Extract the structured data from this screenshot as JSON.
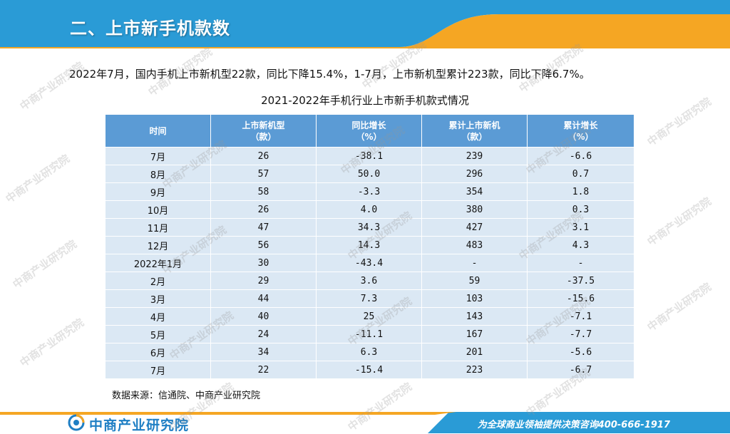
{
  "header": {
    "title": "二、上市新手机款数"
  },
  "summary": "2022年7月，国内手机上市新机型22款，同比下降15.4%，1-7月，上市新机型累计223款，同比下降6.7%。",
  "table": {
    "title": "2021-2022年手机行业上市新手机款式情况",
    "headers": [
      {
        "line1": "时间",
        "line2": ""
      },
      {
        "line1": "上市新机型",
        "line2": "（款）"
      },
      {
        "line1": "同比增长",
        "line2": "（%）"
      },
      {
        "line1": "累计上市新机",
        "line2": "（款）"
      },
      {
        "line1": "累计增长",
        "line2": "（%）"
      }
    ],
    "rows": [
      [
        "7月",
        "26",
        "-38.1",
        "239",
        "-6.6"
      ],
      [
        "8月",
        "57",
        "50.0",
        "296",
        "0.7"
      ],
      [
        "9月",
        "58",
        "-3.3",
        "354",
        "1.8"
      ],
      [
        "10月",
        "26",
        "4.0",
        "380",
        "0.3"
      ],
      [
        "11月",
        "47",
        "34.3",
        "427",
        "3.1"
      ],
      [
        "12月",
        "56",
        "14.3",
        "483",
        "4.3"
      ],
      [
        "2022年1月",
        "30",
        "-43.4",
        "-",
        "-"
      ],
      [
        "2月",
        "29",
        "3.6",
        "59",
        "-37.5"
      ],
      [
        "3月",
        "44",
        "7.3",
        "103",
        "-15.6"
      ],
      [
        "4月",
        "40",
        "25",
        "143",
        "-7.1"
      ],
      [
        "5月",
        "24",
        "-11.1",
        "167",
        "-7.7"
      ],
      [
        "6月",
        "34",
        "6.3",
        "201",
        "-5.6"
      ],
      [
        "7月",
        "22",
        "-15.4",
        "223",
        "-6.7"
      ]
    ]
  },
  "source": "数据来源：信通院、中商产业研究院",
  "footer": {
    "logo_text": "中商产业研究院",
    "slogan": "为全球商业领袖提供决策咨询400-666-1917"
  },
  "watermark_text": "中商产业研究院",
  "colors": {
    "header_blue": "#2a9bd6",
    "accent_orange": "#f5a623",
    "table_header": "#5b9bd5",
    "table_row": "#dbe8f4",
    "logo_blue": "#1f7fc4"
  }
}
